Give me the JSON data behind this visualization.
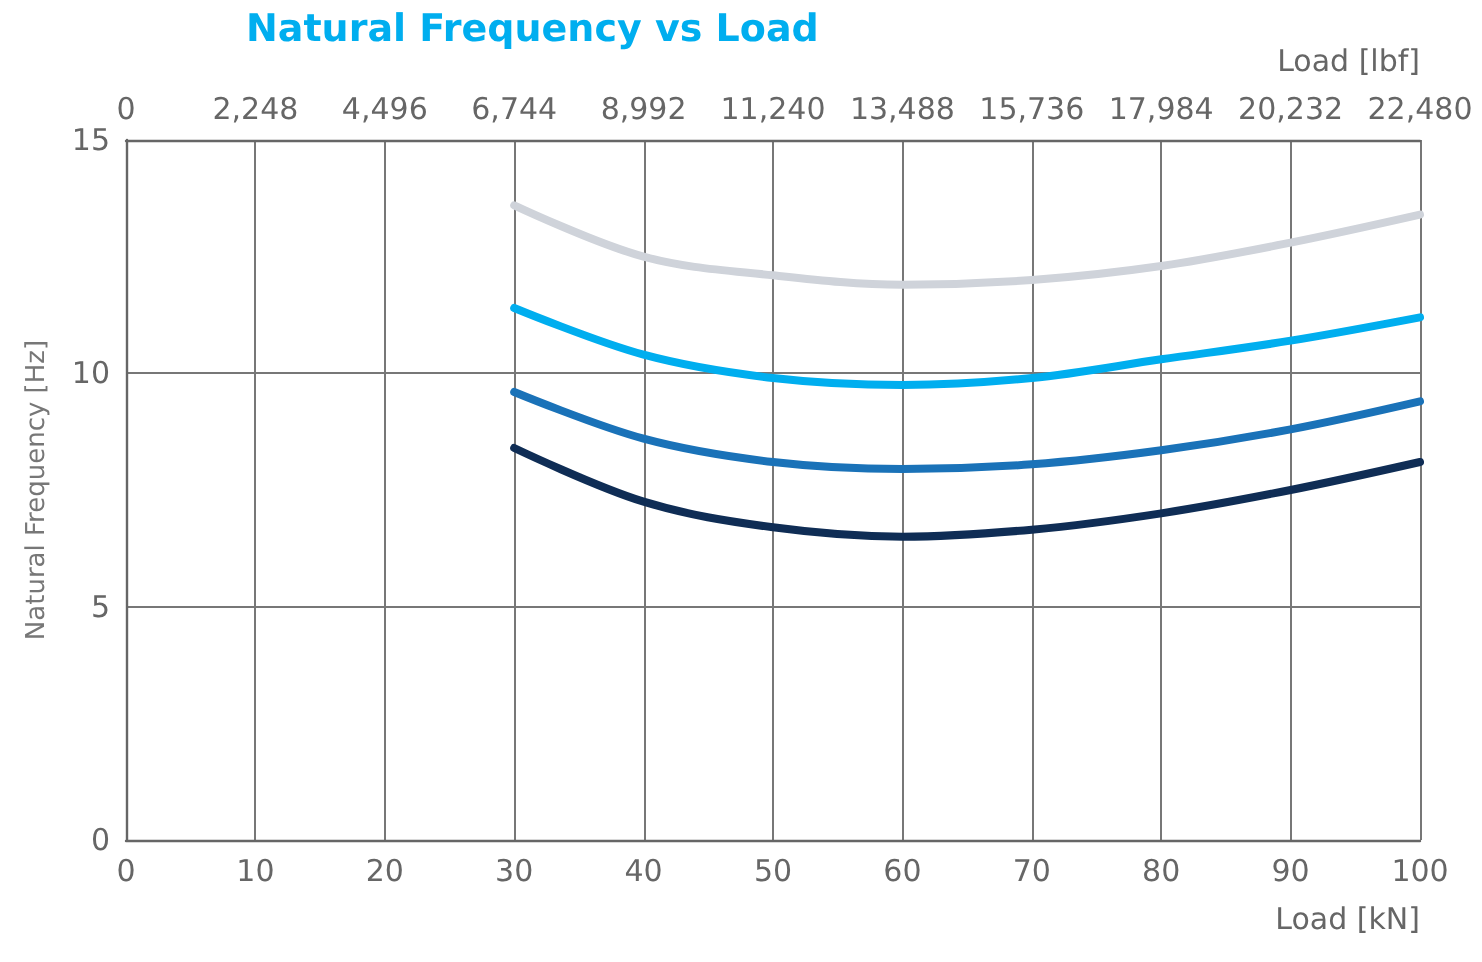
{
  "chart_data": {
    "type": "line",
    "title": "Natural Frequency vs Load",
    "xlabel": "Load [kN]",
    "ylabel": "Natural Frequency [Hz]",
    "x2label": "Load [lbf]",
    "x": [
      30,
      40,
      50,
      60,
      70,
      80,
      90,
      100
    ],
    "series": [
      {
        "color": "#cfd3da",
        "values": [
          13.6,
          12.5,
          12.1,
          11.9,
          12.0,
          12.3,
          12.8,
          13.4
        ]
      },
      {
        "color": "#00aeef",
        "values": [
          11.4,
          10.4,
          9.9,
          9.75,
          9.9,
          10.3,
          10.7,
          11.2
        ]
      },
      {
        "color": "#1a72b8",
        "values": [
          9.6,
          8.6,
          8.1,
          7.95,
          8.05,
          8.35,
          8.8,
          9.4
        ]
      },
      {
        "color": "#0f2d55",
        "values": [
          8.4,
          7.25,
          6.7,
          6.5,
          6.65,
          7.0,
          7.5,
          8.1
        ]
      }
    ],
    "xlim": [
      0,
      100
    ],
    "xticks": [
      0,
      10,
      20,
      30,
      40,
      50,
      60,
      70,
      80,
      90,
      100
    ],
    "ylim": [
      0,
      15
    ],
    "yticks": [
      0,
      5,
      10,
      15
    ],
    "x2lim": [
      0,
      22480
    ],
    "x2ticks": [
      0,
      {
        "value": 2248,
        "label": "2,248"
      },
      {
        "value": 4496,
        "label": "4,496"
      },
      {
        "value": 6744,
        "label": "6,744"
      },
      {
        "value": 8992,
        "label": "8,992"
      },
      {
        "value": 11240,
        "label": "11,240"
      },
      {
        "value": 13488,
        "label": "13,488"
      },
      {
        "value": 15736,
        "label": "15,736"
      },
      {
        "value": 17984,
        "label": "17,984"
      },
      {
        "value": 20232,
        "label": "20,232"
      },
      {
        "value": 22480,
        "label": "22,480"
      }
    ],
    "grid": true,
    "marker": "none",
    "line_style": "solid"
  }
}
